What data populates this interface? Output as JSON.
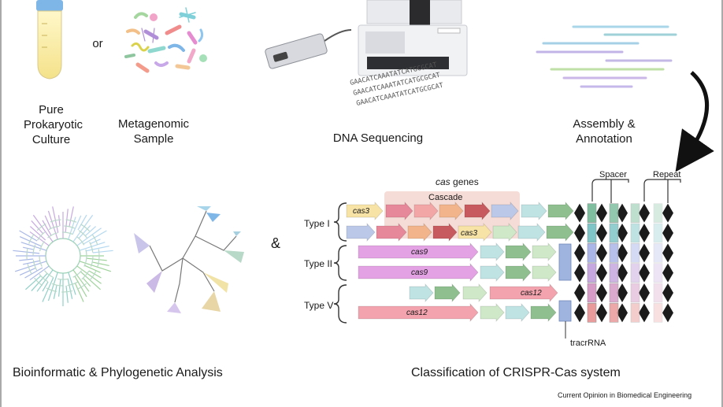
{
  "steps": {
    "pure_culture": "Pure\nProkaryotic\nCulture",
    "or": "or",
    "metagenomic": "Metagenomic\nSample",
    "sequencing": "DNA Sequencing",
    "assembly": "Assembly &\nAnnotation",
    "bioinformatic": "Bioinformatic & Phylogenetic Analysis",
    "ampersand": "&",
    "classification": "Classification of CRISPR-Cas system"
  },
  "sequence_reads": [
    "GAACATCAAATATCATGCGCAT",
    "GAACATCAAATATCATGCGCAT",
    "GAACATCAAATATCATGCGCAT"
  ],
  "crispr": {
    "cas_genes_italic": "cas",
    "cas_genes_rest": " genes",
    "cascade": "Cascade",
    "spacer": "Spacer",
    "repeat": "Repeat",
    "tracrrna": "tracrRNA",
    "types": [
      "Type I",
      "Type II",
      "Type V"
    ],
    "gene_labels": {
      "cas3_a": "cas3",
      "cas3_b": "cas3",
      "cas9_a": "cas9",
      "cas9_b": "cas9",
      "cas12_a": "cas12",
      "cas12_b": "cas12"
    }
  },
  "credit": "Current Opinion in Biomedical Engineering",
  "colors": {
    "cas3": "#f7e3a6",
    "cascade_bg": "#f6dcd6",
    "cascade_1": "#e7879a",
    "cascade_2": "#f3a6a6",
    "cascade_3": "#f2b48a",
    "cascade_4": "#c65a5e",
    "cas9": "#e3a2e3",
    "cas12": "#f2a3ad",
    "light_teal": "#bfe3e3",
    "light_green": "#cfe9c8",
    "green": "#8fbf8f",
    "blue_grey": "#bcc8e8",
    "spacers": [
      "#7fbf9f",
      "#7fc5c7",
      "#aab6e8",
      "#c6a7df",
      "#d69bc6",
      "#e99a9a"
    ]
  }
}
